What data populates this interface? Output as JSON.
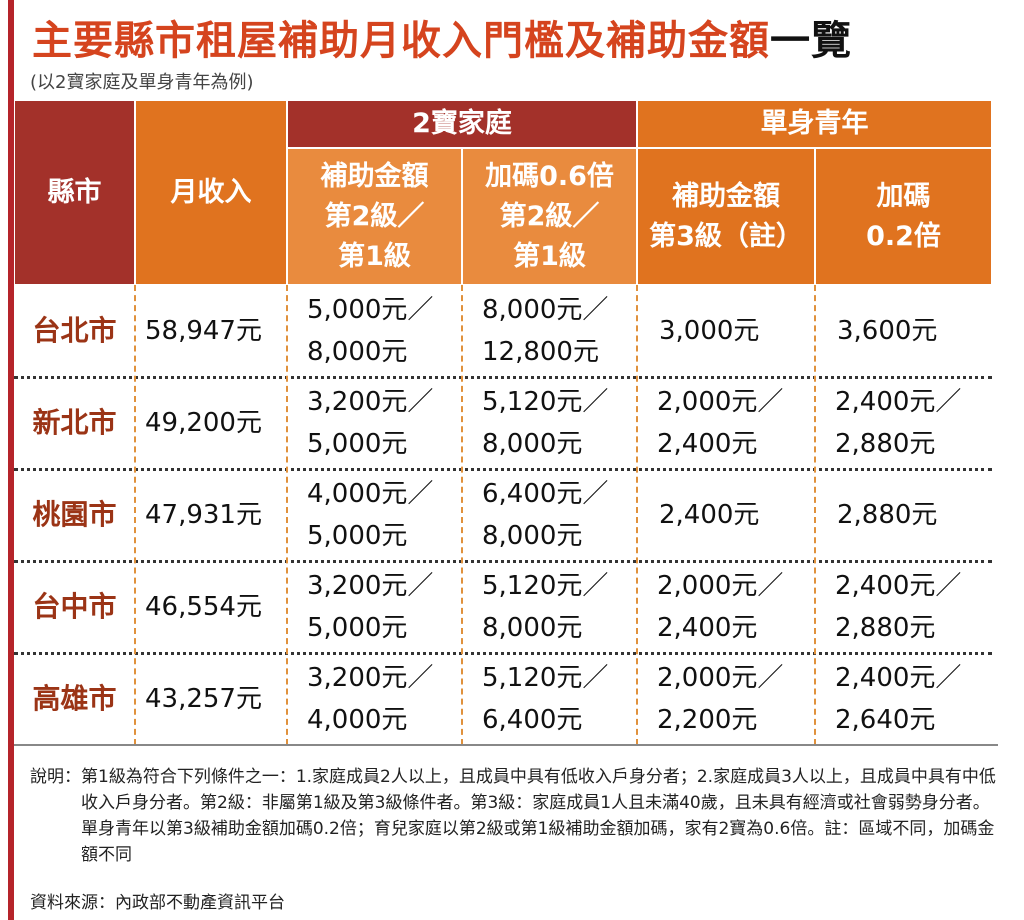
{
  "header": {
    "title": "主要縣市租屋補助月收入門檻及補助金額",
    "title_suffix": "一覽",
    "subtitle": "(以2寶家庭及單身青年為例)"
  },
  "table": {
    "columns": {
      "city": "縣市",
      "income": "月收入",
      "family_group": "2寶家庭",
      "single_group": "單身青年",
      "family_subsidy": [
        "補助金額",
        "第2級／",
        "第1級"
      ],
      "family_bonus": [
        "加碼0.6倍",
        "第2級／",
        "第1級"
      ],
      "single_subsidy": [
        "補助金額",
        "第3級（註）"
      ],
      "single_bonus": [
        "加碼",
        "0.2倍"
      ]
    },
    "rows": [
      [
        "台北市",
        "58,947元",
        [
          "5,000元／",
          "8,000元"
        ],
        [
          "8,000元／",
          "12,800元"
        ],
        [
          "3,000元"
        ],
        [
          "3,600元"
        ]
      ],
      [
        "新北市",
        "49,200元",
        [
          "3,200元／",
          "5,000元"
        ],
        [
          "5,120元／",
          "8,000元"
        ],
        [
          "2,000元／",
          "2,400元"
        ],
        [
          "2,400元／",
          "2,880元"
        ]
      ],
      [
        "桃園市",
        "47,931元",
        [
          "4,000元／",
          "5,000元"
        ],
        [
          "6,400元／",
          "8,000元"
        ],
        [
          "2,400元"
        ],
        [
          "2,880元"
        ]
      ],
      [
        "台中市",
        "46,554元",
        [
          "3,200元／",
          "5,000元"
        ],
        [
          "5,120元／",
          "8,000元"
        ],
        [
          "2,000元／",
          "2,400元"
        ],
        [
          "2,400元／",
          "2,880元"
        ]
      ],
      [
        "高雄市",
        "43,257元",
        [
          "3,200元／",
          "4,000元"
        ],
        [
          "5,120元／",
          "6,400元"
        ],
        [
          "2,000元／",
          "2,200元"
        ],
        [
          "2,400元／",
          "2,640元"
        ]
      ]
    ]
  },
  "note": {
    "label": "說明：",
    "text": "第1級為符合下列條件之一：1.家庭成員2人以上，且成員中具有低收入戶身分者；2.家庭成員3人以上，且成員中具有中低收入戶身分者。第2級：非屬第1級及第3級條件者。第3級：家庭成員1人且未滿40歲，且未具有經濟或社會弱勢身分者。單身青年以第3級補助金額加碼0.2倍；育兒家庭以第2級或第1級補助金額加碼，家有2寶為0.6倍。註：區域不同，加碼金額不同"
  },
  "source": "資料來源：內政部不動產資訊平台"
}
